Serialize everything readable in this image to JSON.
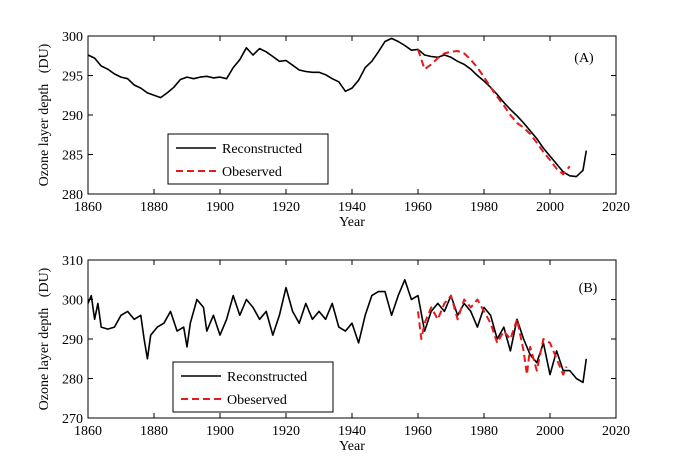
{
  "chart_data": [
    {
      "type": "line",
      "xlabel": "Year",
      "ylabel": "Ozone layer depth   (DU)",
      "annotation": "(A)",
      "xlim": [
        1860,
        2020
      ],
      "xticks": [
        1860,
        1880,
        1900,
        1920,
        1940,
        1960,
        1980,
        2000,
        2020
      ],
      "ylim": [
        280,
        300
      ],
      "yticks": [
        280,
        285,
        290,
        295,
        300
      ],
      "legend": "lower left",
      "series": [
        {
          "name": "Reconstructed",
          "color": "#000000",
          "linestyle": "solid",
          "x": [
            1860,
            1862,
            1864,
            1866,
            1868,
            1870,
            1872,
            1874,
            1876,
            1878,
            1880,
            1882,
            1884,
            1886,
            1888,
            1890,
            1892,
            1894,
            1896,
            1898,
            1900,
            1902,
            1904,
            1906,
            1908,
            1910,
            1912,
            1914,
            1916,
            1918,
            1920,
            1922,
            1924,
            1926,
            1928,
            1930,
            1932,
            1934,
            1936,
            1938,
            1940,
            1942,
            1944,
            1946,
            1948,
            1950,
            1952,
            1954,
            1956,
            1958,
            1960,
            1962,
            1964,
            1966,
            1968,
            1970,
            1972,
            1974,
            1976,
            1978,
            1980,
            1982,
            1984,
            1986,
            1988,
            1990,
            1992,
            1994,
            1996,
            1998,
            2000,
            2002,
            2004,
            2006,
            2008,
            2010,
            2011
          ],
          "values": [
            297.6,
            297.2,
            296.2,
            295.8,
            295.2,
            294.8,
            294.6,
            293.8,
            293.4,
            292.8,
            292.5,
            292.2,
            292.8,
            293.5,
            294.5,
            294.8,
            294.6,
            294.8,
            294.9,
            294.7,
            294.8,
            294.6,
            296.0,
            297.0,
            298.5,
            297.6,
            298.4,
            298.0,
            297.4,
            296.8,
            296.9,
            296.3,
            295.7,
            295.5,
            295.4,
            295.4,
            295.1,
            294.6,
            294.2,
            293.0,
            293.4,
            294.4,
            296.0,
            296.8,
            298.0,
            299.3,
            299.7,
            299.3,
            298.8,
            298.2,
            298.3,
            297.6,
            297.4,
            297.3,
            297.6,
            297.3,
            296.8,
            296.4,
            295.8,
            295.0,
            294.3,
            293.5,
            292.6,
            291.6,
            290.7,
            289.9,
            289.0,
            288.0,
            287.0,
            285.8,
            284.8,
            283.8,
            282.8,
            282.3,
            282.2,
            283.0,
            285.5
          ]
        },
        {
          "name": "Obeserved",
          "color": "#e41a1c",
          "linestyle": "dashed",
          "x": [
            1960,
            1962,
            1964,
            1966,
            1968,
            1970,
            1972,
            1974,
            1976,
            1978,
            1980,
            1982,
            1984,
            1986,
            1988,
            1990,
            1992,
            1994,
            1996,
            1998,
            2000,
            2002,
            2004,
            2006
          ],
          "values": [
            298.3,
            295.8,
            296.4,
            297.2,
            297.8,
            298.0,
            298.1,
            297.8,
            297.0,
            296.0,
            294.8,
            293.5,
            292.3,
            291.2,
            290.0,
            289.0,
            288.4,
            287.6,
            286.5,
            285.3,
            284.3,
            283.2,
            282.5,
            283.5
          ]
        }
      ]
    },
    {
      "type": "line",
      "xlabel": "Year",
      "ylabel": "Ozone layer depth   (DU)",
      "annotation": "(B)",
      "xlim": [
        1860,
        2020
      ],
      "xticks": [
        1860,
        1880,
        1900,
        1920,
        1940,
        1960,
        1980,
        2000,
        2020
      ],
      "ylim": [
        270,
        310
      ],
      "yticks": [
        270,
        280,
        290,
        300,
        310
      ],
      "legend": "lower left",
      "series": [
        {
          "name": "Reconstructed",
          "color": "#000000",
          "linestyle": "solid",
          "x": [
            1860,
            1861,
            1862,
            1863,
            1864,
            1866,
            1868,
            1870,
            1872,
            1874,
            1876,
            1877,
            1878,
            1879,
            1881,
            1883,
            1885,
            1887,
            1889,
            1890,
            1891,
            1893,
            1895,
            1896,
            1898,
            1900,
            1902,
            1904,
            1906,
            1908,
            1910,
            1912,
            1914,
            1916,
            1918,
            1920,
            1922,
            1924,
            1926,
            1928,
            1930,
            1932,
            1934,
            1936,
            1938,
            1940,
            1942,
            1944,
            1946,
            1948,
            1950,
            1952,
            1954,
            1956,
            1958,
            1960,
            1962,
            1964,
            1966,
            1968,
            1970,
            1972,
            1974,
            1976,
            1978,
            1980,
            1982,
            1984,
            1986,
            1988,
            1990,
            1992,
            1994,
            1996,
            1998,
            2000,
            2002,
            2004,
            2006,
            2008,
            2010,
            2011
          ],
          "values": [
            299,
            301,
            295,
            299,
            293,
            292.5,
            293,
            296,
            297,
            295,
            296,
            290,
            285,
            291,
            293,
            294,
            297,
            292,
            293,
            288,
            294,
            300,
            298,
            292,
            296,
            291,
            295,
            301,
            296,
            300,
            298,
            295,
            297,
            291,
            296,
            303,
            297,
            294,
            299,
            295,
            297,
            295,
            299,
            293,
            292,
            294,
            289,
            296,
            301,
            302,
            302,
            296,
            301,
            305,
            300,
            301,
            292,
            297,
            299,
            297,
            301,
            296,
            299,
            297,
            293,
            298,
            296,
            290,
            293,
            287,
            295,
            290,
            286,
            284,
            289,
            281,
            287,
            282,
            282,
            280,
            279,
            285
          ]
        },
        {
          "name": "Obeserved",
          "color": "#e41a1c",
          "linestyle": "dashed",
          "x": [
            1960,
            1961,
            1962,
            1964,
            1966,
            1968,
            1970,
            1972,
            1974,
            1976,
            1978,
            1980,
            1982,
            1984,
            1986,
            1988,
            1990,
            1992,
            1993,
            1994,
            1996,
            1998,
            2000,
            2002,
            2004,
            2005
          ],
          "values": [
            297,
            290,
            294,
            298,
            295,
            299,
            301,
            295,
            300,
            298,
            300,
            297,
            294,
            289,
            292,
            290,
            295,
            287,
            281,
            288,
            282,
            290,
            289,
            285,
            281,
            283
          ]
        }
      ]
    }
  ]
}
